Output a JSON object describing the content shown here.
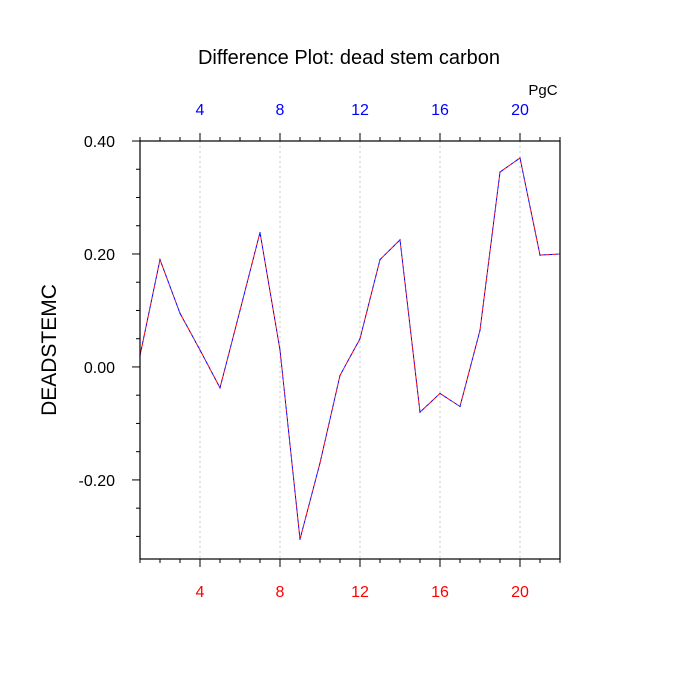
{
  "chart_data": {
    "type": "line",
    "title": "Difference Plot: dead stem carbon",
    "ylabel": "DEADSTEMC",
    "units_label": "PgC",
    "xlim": [
      1,
      22
    ],
    "ylim": [
      -0.34,
      0.4
    ],
    "x_ticks": [
      4,
      8,
      12,
      16,
      20
    ],
    "y_ticks": [
      0.4,
      0.2,
      0.0,
      -0.2
    ],
    "y_tick_labels": [
      "0.40",
      "0.20",
      "0.00",
      "-0.20"
    ],
    "top_x_ticks": [
      "4",
      "8",
      "12",
      "16",
      "20"
    ],
    "bottom_x_ticks": [
      "4",
      "8",
      "12",
      "16",
      "20"
    ],
    "grid": "vertical dotted at major x ticks",
    "series": [
      {
        "name": "DEADSTEMC difference",
        "style": "dashed",
        "color_primary": "#0000ff",
        "color_secondary": "#ff0000",
        "x": [
          1,
          2,
          3,
          4,
          5,
          6,
          7,
          8,
          9,
          10,
          11,
          12,
          13,
          14,
          15,
          16,
          17,
          18,
          19,
          20,
          21,
          22
        ],
        "values": [
          0.02,
          0.19,
          0.095,
          0.03,
          -0.037,
          0.1,
          0.238,
          0.03,
          -0.305,
          -0.17,
          -0.015,
          0.05,
          0.19,
          0.225,
          -0.08,
          -0.047,
          -0.07,
          0.065,
          0.345,
          0.37,
          0.198,
          0.2
        ]
      }
    ]
  },
  "colors": {
    "top_axis_labels": "#0000ff",
    "bottom_axis_labels": "#ff0000",
    "text": "#000000",
    "grid": "#c8c8c8"
  }
}
